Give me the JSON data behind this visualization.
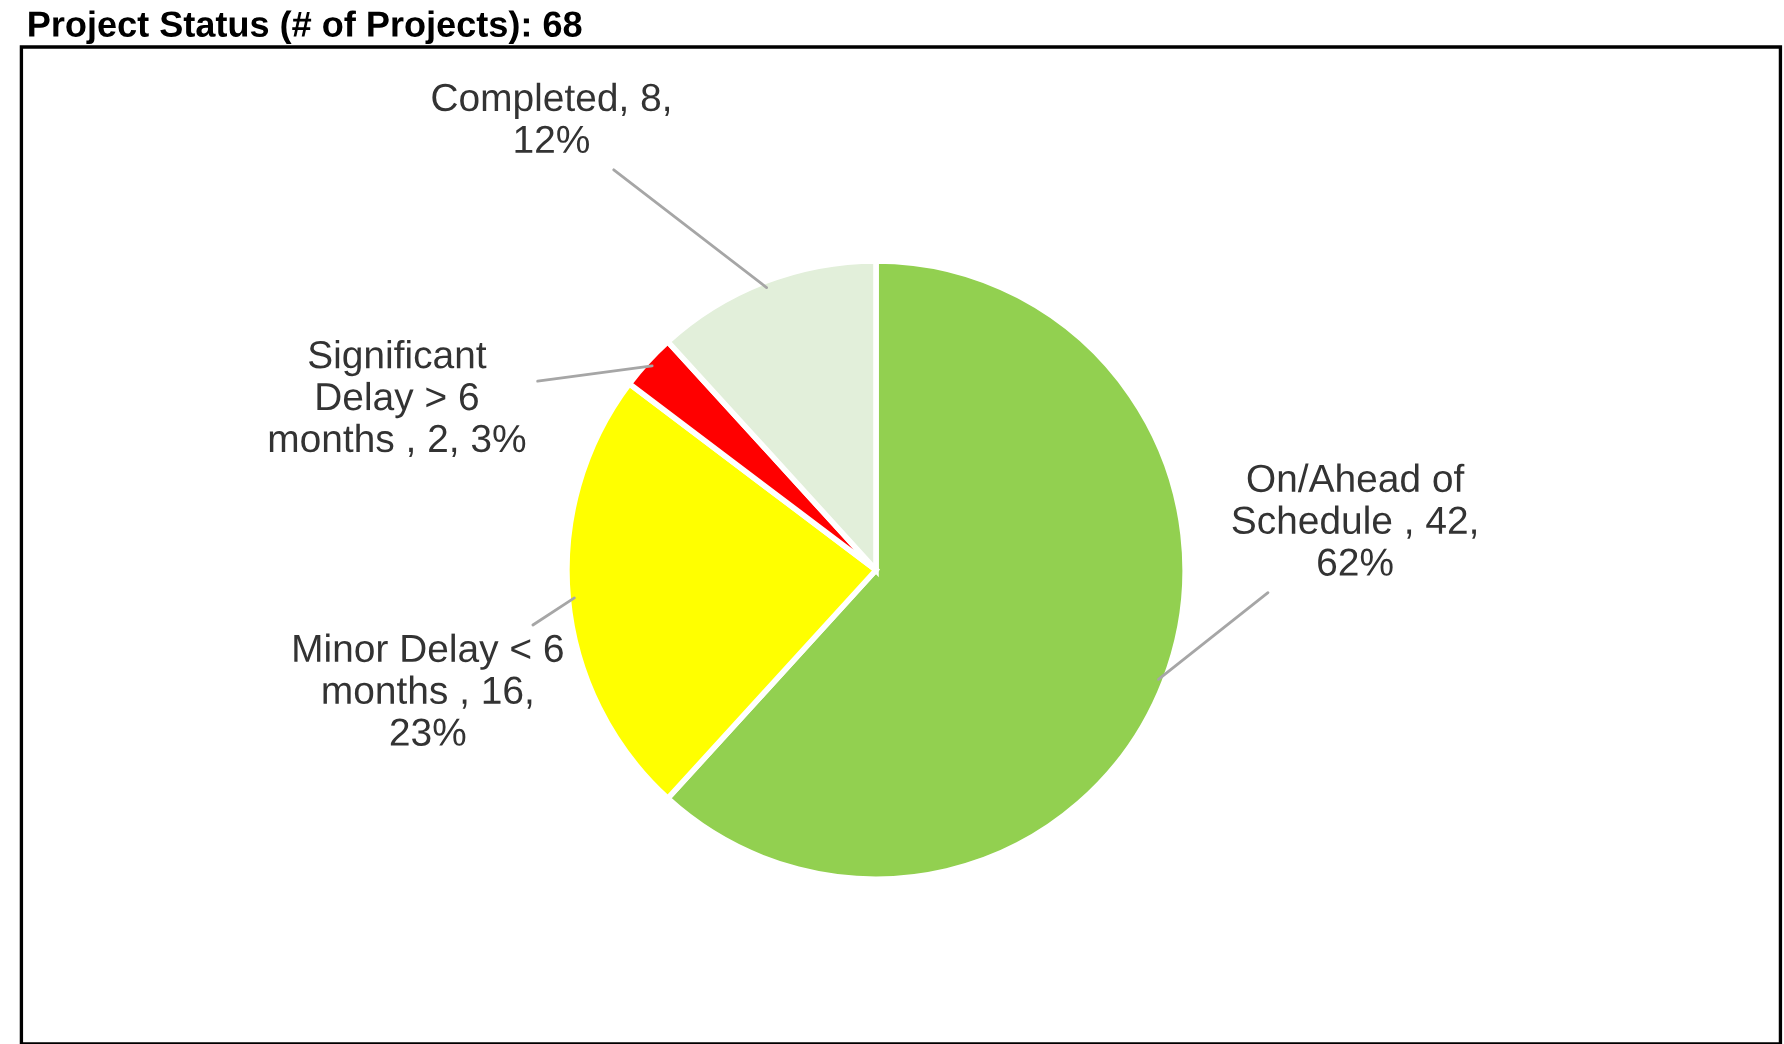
{
  "chart_data": {
    "type": "pie",
    "title": "Project Status (# of Projects): 68",
    "categories": [
      "On/Ahead of\nSchedule ",
      "Minor Delay < 6\nmonths ",
      "Significant\nDelay > 6\nmonths ",
      "Completed"
    ],
    "values": [
      42,
      16,
      2,
      8
    ],
    "colors": [
      "#92d050",
      "#ffff00",
      "#ff0000",
      "#e2efda"
    ],
    "value_labels": [
      "42,\n62%",
      "16,\n23%",
      "2, 3%",
      "8,\n12%"
    ],
    "legend": false
  }
}
